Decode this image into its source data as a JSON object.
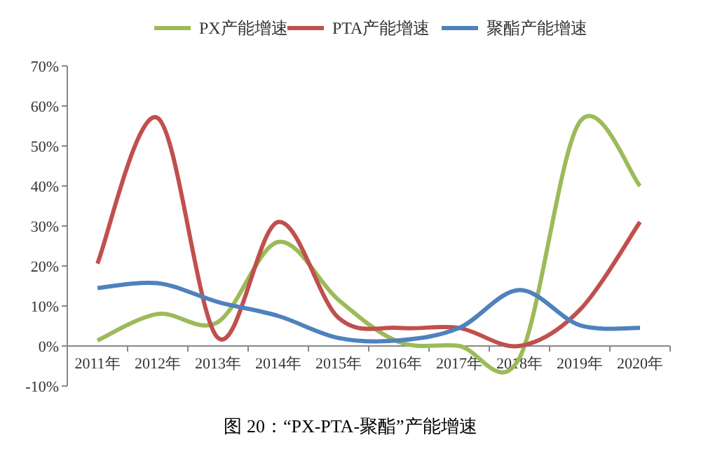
{
  "chart_data": {
    "type": "line",
    "title": "图 20：“PX-PTA-聚酯”产能增速",
    "categories": [
      "2011年",
      "2012年",
      "2013年",
      "2014年",
      "2015年",
      "2016年",
      "2017年",
      "2018年",
      "2019年",
      "2020年"
    ],
    "series": [
      {
        "name": "PX产能增速",
        "color": "#9bbb59",
        "values": [
          1.4,
          8,
          6,
          26,
          11.5,
          1,
          0,
          -3,
          56,
          40
        ]
      },
      {
        "name": "PTA产能增速",
        "color": "#c0504d",
        "values": [
          20.6,
          57,
          2,
          31,
          7,
          4.5,
          4.5,
          0,
          9,
          31
        ]
      },
      {
        "name": "聚酯产能增速",
        "color": "#4f81bd",
        "values": [
          14.5,
          15.7,
          11,
          7.5,
          2,
          1.4,
          4.5,
          14,
          5.2,
          4.5
        ]
      }
    ],
    "ylim": [
      -10,
      70
    ],
    "yticks": [
      {
        "value": -10,
        "label": "-10%"
      },
      {
        "value": 0,
        "label": "0%"
      },
      {
        "value": 10,
        "label": "10%"
      },
      {
        "value": 20,
        "label": "20%"
      },
      {
        "value": 30,
        "label": "30%"
      },
      {
        "value": 40,
        "label": "40%"
      },
      {
        "value": 50,
        "label": "50%"
      },
      {
        "value": 60,
        "label": "60%"
      },
      {
        "value": 70,
        "label": "70%"
      }
    ],
    "legend": "top",
    "grid": false,
    "marker": "none",
    "line_style": "solid"
  }
}
